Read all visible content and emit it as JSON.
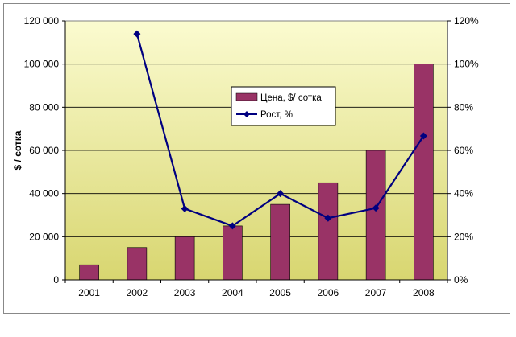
{
  "chart_data": {
    "type": "bar+line",
    "categories": [
      "2001",
      "2002",
      "2003",
      "2004",
      "2005",
      "2006",
      "2007",
      "2008"
    ],
    "series": [
      {
        "name": "Цена, $/ сотка",
        "type": "bar",
        "axis": "left",
        "values": [
          7000,
          15000,
          20000,
          25000,
          35000,
          45000,
          60000,
          100000
        ]
      },
      {
        "name": "Рост, %",
        "type": "line",
        "axis": "right",
        "values": [
          null,
          114,
          33,
          25,
          40,
          28.6,
          33.3,
          66.7
        ]
      }
    ],
    "ylabel": "$ / сотка",
    "y_left": {
      "ylim": [
        0,
        120000
      ],
      "ticks": [
        "0",
        "20 000",
        "40 000",
        "60 000",
        "80 000",
        "100 000",
        "120 000"
      ]
    },
    "y_right": {
      "ylim": [
        0,
        120
      ],
      "ticks": [
        "0%",
        "20%",
        "40%",
        "60%",
        "80%",
        "100%",
        "120%"
      ]
    },
    "grid": true,
    "legend_position": "center",
    "colors": {
      "bar": "#993366",
      "line": "#000080",
      "plot_top": "#fbfbd0",
      "plot_bottom": "#d8d670"
    }
  }
}
